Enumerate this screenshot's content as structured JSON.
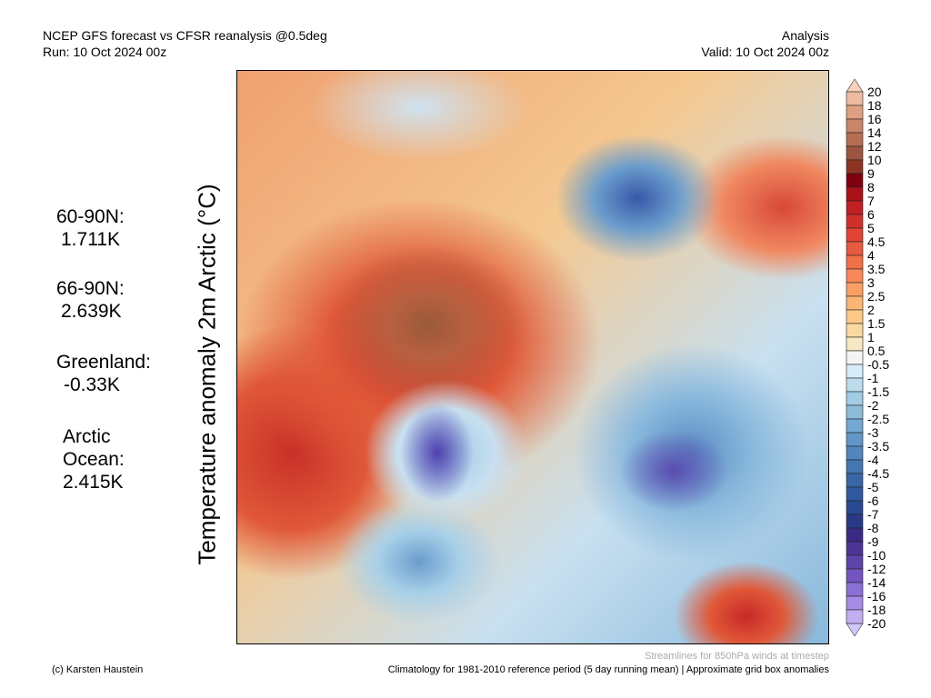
{
  "header": {
    "title": "NCEP GFS forecast vs CFSR reanalysis @0.5deg",
    "run": "Run: 10 Oct 2024 00z",
    "mode": "Analysis",
    "valid": "Valid: 10 Oct 2024 00z"
  },
  "stats": [
    {
      "label": "60-90N:",
      "value": "1.711K"
    },
    {
      "label": "66-90N:",
      "value": "2.639K"
    },
    {
      "label": "Greenland:",
      "value": "-0.33K"
    },
    {
      "label": "Arctic Ocean:",
      "value": "2.415K"
    }
  ],
  "footer": {
    "credit": "(c) Karsten Haustein",
    "streamlines": "Streamlines for 850hPa winds at timestep",
    "climatology": "Climatology for 1981-2010 reference period (5 day running mean) | Approximate grid box anomalies"
  },
  "chart_data": {
    "type": "heatmap",
    "title": "Temperature anomaly 2m Arctic (°C)",
    "projection": "polar stereographic, Arctic",
    "colorbar": {
      "ticks": [
        "20",
        "18",
        "16",
        "14",
        "12",
        "10",
        "9",
        "8",
        "7",
        "6",
        "5",
        "4.5",
        "4",
        "3.5",
        "3",
        "2.5",
        "2",
        "1.5",
        "1",
        "0.5",
        "-0.5",
        "-1",
        "-1.5",
        "-2",
        "-2.5",
        "-3",
        "-3.5",
        "-4",
        "-4.5",
        "-5",
        "-6",
        "-7",
        "-8",
        "-9",
        "-10",
        "-12",
        "-14",
        "-16",
        "-18",
        "-20"
      ],
      "colors": [
        "#eebaa2",
        "#dea082",
        "#c9856a",
        "#b56e52",
        "#9c5540",
        "#8c3424",
        "#800010",
        "#a81218",
        "#c02024",
        "#d0302a",
        "#e04434",
        "#e85a40",
        "#f07048",
        "#f88858",
        "#f8a064",
        "#fbb674",
        "#fcca86",
        "#f8daa0",
        "#f6e8c2",
        "#f4f4f4",
        "#d6ecf8",
        "#bcdcee",
        "#a2cce4",
        "#8cbcd8",
        "#74a8d0",
        "#6296c6",
        "#5286bc",
        "#4676b0",
        "#3a66a6",
        "#30589c",
        "#284890",
        "#283a86",
        "#3a2a84",
        "#4c3494",
        "#5e44aa",
        "#7454c0",
        "#8a70d4",
        "#a68ae4",
        "#c0aef0"
      ],
      "over_color": "#f8d0bc",
      "under_color": "#d2c8f8"
    }
  }
}
